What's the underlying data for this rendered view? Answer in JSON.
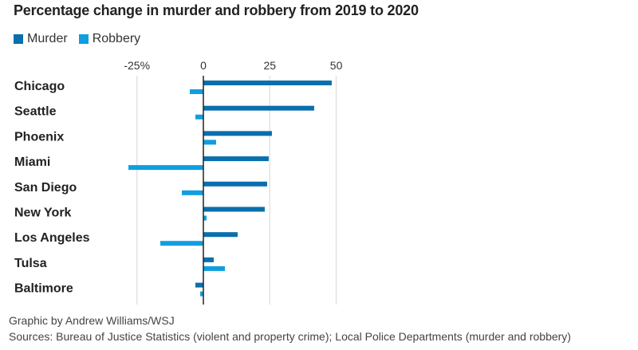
{
  "chart_data": {
    "type": "bar",
    "orientation": "horizontal",
    "title": "Percentage change in murder and robbery from 2019 to 2020",
    "xlabel": "",
    "ylabel": "",
    "xlim": [
      -30,
      52
    ],
    "ticks": [
      {
        "value": -25,
        "label": "-25%"
      },
      {
        "value": 0,
        "label": "0"
      },
      {
        "value": 25,
        "label": "25"
      },
      {
        "value": 50,
        "label": "50"
      }
    ],
    "grid": true,
    "legend_position": "top-left",
    "categories": [
      "Chicago",
      "Seattle",
      "Phoenix",
      "Miami",
      "San Diego",
      "New York",
      "Los Angeles",
      "Tulsa",
      "Baltimore"
    ],
    "series": [
      {
        "name": "Murder",
        "color": "#0a6fad",
        "values": [
          48.3,
          41.7,
          25.8,
          24.6,
          24.0,
          23.1,
          12.9,
          3.9,
          -3.0
        ]
      },
      {
        "name": "Robbery",
        "color": "#109ee0",
        "values": [
          -5.1,
          -3.0,
          4.8,
          -28.2,
          -8.1,
          1.2,
          -16.2,
          8.1,
          -1.2
        ]
      }
    ]
  },
  "legend": {
    "murder_label": "Murder",
    "robbery_label": "Robbery",
    "murder_color": "#0a6fad",
    "robbery_color": "#109ee0"
  },
  "footer": {
    "credit": "Graphic by Andrew Williams/WSJ",
    "sources": "Sources: Bureau of Justice Statistics (violent and property crime); Local Police Departments (murder and robbery)"
  }
}
